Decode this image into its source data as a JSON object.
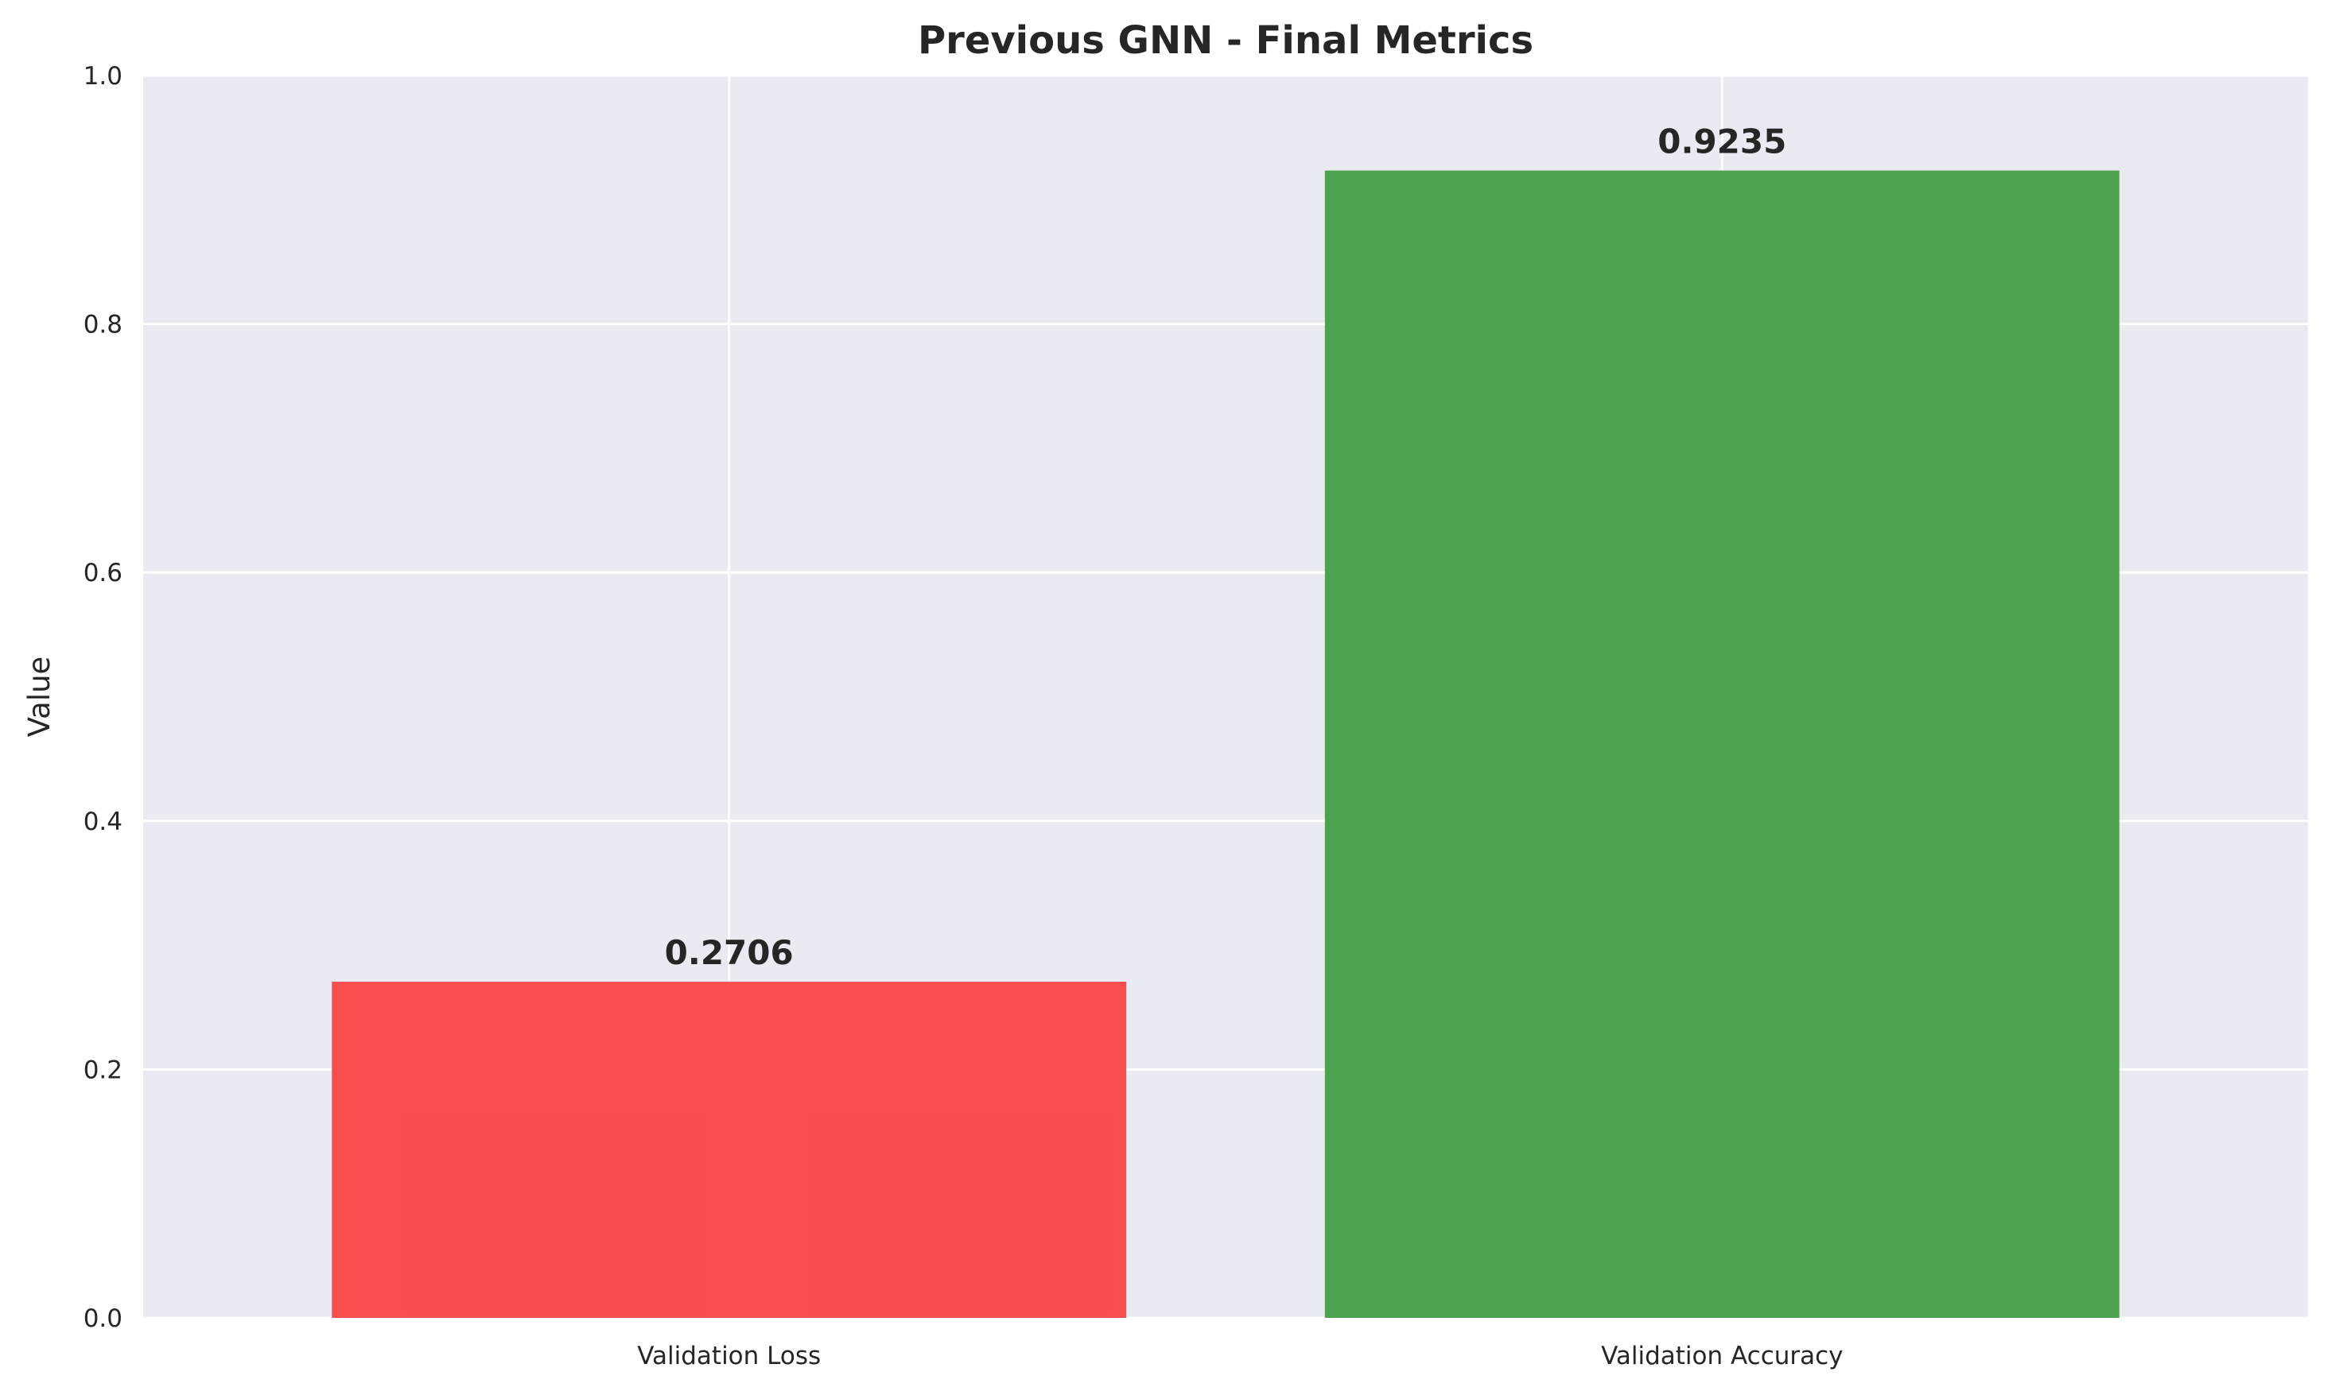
{
  "chart_data": {
    "type": "bar",
    "title": "Previous GNN - Final Metrics",
    "xlabel": "",
    "ylabel": "Value",
    "categories": [
      "Validation Loss",
      "Validation Accuracy"
    ],
    "values": [
      0.2706,
      0.9235
    ],
    "value_labels": [
      "0.2706",
      "0.9235"
    ],
    "colors": [
      "#f94a4a",
      "#48a04a"
    ],
    "ylim": [
      0,
      1.0
    ],
    "yticks": [
      0.0,
      0.2,
      0.4,
      0.6,
      0.8,
      1.0
    ],
    "ytick_labels": [
      "0.0",
      "0.2",
      "0.4",
      "0.6",
      "0.8",
      "1.0"
    ],
    "grid": true,
    "plot_background": "#eaeaf2"
  }
}
